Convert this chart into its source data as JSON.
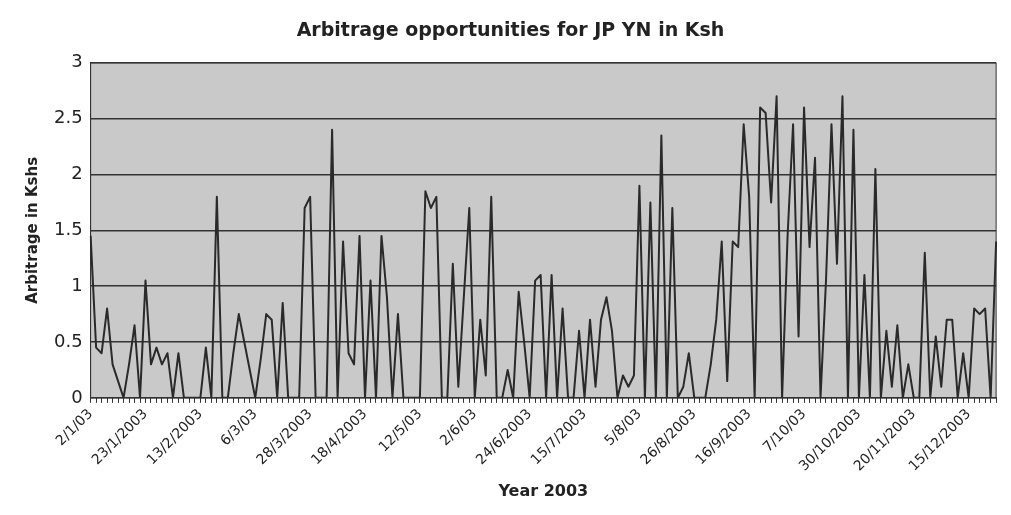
{
  "chart_data": {
    "type": "line",
    "title": "Arbitrage opportunities for JP YN in Ksh",
    "xlabel": "Year 2003",
    "ylabel": "Arbitrage in Kshs",
    "categories": [
      "2/1/03",
      null,
      null,
      null,
      null,
      null,
      null,
      null,
      null,
      null,
      "23/1/2003",
      null,
      null,
      null,
      null,
      null,
      null,
      null,
      null,
      null,
      "13/2/2003",
      null,
      null,
      null,
      null,
      null,
      null,
      null,
      null,
      null,
      "6/3/03",
      null,
      null,
      null,
      null,
      null,
      null,
      null,
      null,
      null,
      "28/3/2003",
      null,
      null,
      null,
      null,
      null,
      null,
      null,
      null,
      null,
      "18/4/2003",
      null,
      null,
      null,
      null,
      null,
      null,
      null,
      null,
      null,
      "12/5/03",
      null,
      null,
      null,
      null,
      null,
      null,
      null,
      null,
      null,
      "2/6/03",
      null,
      null,
      null,
      null,
      null,
      null,
      null,
      null,
      null,
      "24/6/2003",
      null,
      null,
      null,
      null,
      null,
      null,
      null,
      null,
      null,
      "15/7/2003",
      null,
      null,
      null,
      null,
      null,
      null,
      null,
      null,
      null,
      "5/8/03",
      null,
      null,
      null,
      null,
      null,
      null,
      null,
      null,
      null,
      "26/8/2003",
      null,
      null,
      null,
      null,
      null,
      null,
      null,
      null,
      null,
      "16/9/2003",
      null,
      null,
      null,
      null,
      null,
      null,
      null,
      null,
      null,
      "7/10/03",
      null,
      null,
      null,
      null,
      null,
      null,
      null,
      null,
      null,
      "30/10/2003",
      null,
      null,
      null,
      null,
      null,
      null,
      null,
      null,
      null,
      "20/11/2003",
      null,
      null,
      null,
      null,
      null,
      null,
      null,
      null,
      null,
      "15/12/2003",
      null,
      null,
      null,
      null,
      null
    ],
    "series": [
      {
        "color": "#2a2a2a",
        "values": [
          1.45,
          0.45,
          0.4,
          0.8,
          0.3,
          0.15,
          0,
          0.3,
          0.65,
          0,
          1.05,
          0.3,
          0.45,
          0.3,
          0.4,
          0,
          0.4,
          0,
          0,
          0,
          0,
          0.45,
          0,
          1.8,
          0,
          0,
          0.4,
          0.75,
          0.5,
          0.25,
          0,
          0.35,
          0.75,
          0.7,
          0,
          0.85,
          0,
          0,
          0,
          1.7,
          1.8,
          0,
          0,
          0,
          2.4,
          0,
          1.4,
          0.4,
          0.3,
          1.45,
          0,
          1.05,
          0,
          1.45,
          0.9,
          0,
          0.75,
          0,
          0,
          0,
          0,
          1.85,
          1.7,
          1.8,
          0,
          0,
          1.2,
          0.1,
          0.9,
          1.7,
          0,
          0.7,
          0.2,
          1.8,
          0,
          0,
          0.25,
          0,
          0.95,
          0.5,
          0,
          1.05,
          1.1,
          0,
          1.1,
          0,
          0.8,
          0,
          0,
          0.6,
          0,
          0.7,
          0.1,
          0.7,
          0.9,
          0.6,
          0,
          0.2,
          0.1,
          0.2,
          1.9,
          0,
          1.75,
          0,
          2.35,
          0,
          1.7,
          0,
          0.1,
          0.4,
          0,
          0,
          0,
          0.3,
          0.7,
          1.4,
          0.15,
          1.4,
          1.35,
          2.45,
          1.8,
          0,
          2.6,
          2.55,
          1.75,
          2.7,
          0,
          1.45,
          2.45,
          0.55,
          2.6,
          1.35,
          2.15,
          0,
          1.05,
          2.45,
          1.2,
          2.7,
          0,
          2.4,
          0,
          1.1,
          0,
          2.05,
          0,
          0.6,
          0.1,
          0.65,
          0,
          0.3,
          0,
          0,
          1.3,
          0,
          0.55,
          0.1,
          0.7,
          0.7,
          0,
          0.4,
          0,
          0.8,
          0.75,
          0.8,
          0,
          1.4
        ]
      }
    ],
    "ylim": [
      0,
      3
    ],
    "yticks": [
      0,
      0.5,
      1,
      1.5,
      2,
      2.5,
      3
    ],
    "grid": "y",
    "legend": false,
    "marker": "none",
    "line_style": "solid"
  }
}
